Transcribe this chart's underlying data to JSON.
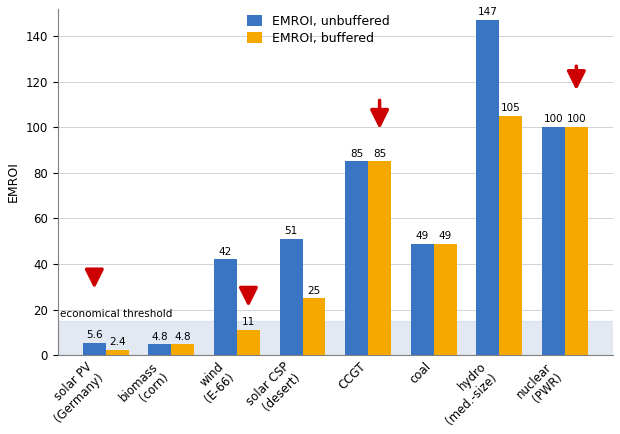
{
  "categories": [
    "solar PV\n(Germany)",
    "biomass\n(corn)",
    "wind\n(E-66)",
    "solar CSP\n(desert)",
    "CCGT",
    "coal",
    "hydro\n(med.-size)",
    "nuclear\n(PWR)"
  ],
  "unbuffered": [
    5.6,
    4.8,
    42,
    51,
    85,
    49,
    147,
    100
  ],
  "buffered": [
    2.4,
    4.8,
    11,
    25,
    85,
    49,
    105,
    100
  ],
  "unbuffered_color": "#3A75C4",
  "buffered_color": "#F5A800",
  "threshold": 15,
  "threshold_label": "economical threshold",
  "ylabel": "EMROI",
  "legend_unbuffered": "EMROI, unbuffered",
  "legend_buffered": "EMROI, buffered",
  "ylim": [
    0,
    152
  ],
  "yticks": [
    0,
    20,
    40,
    60,
    80,
    100,
    120,
    140
  ],
  "arrow_color": "#CC0000",
  "background_color": "#FFFFFF",
  "threshold_bg_color": "#C8D4E8",
  "threshold_alpha": 0.5,
  "bar_width": 0.35,
  "label_fontsize": 7.5,
  "axis_label_fontsize": 9,
  "tick_fontsize": 8.5,
  "legend_fontsize": 9
}
